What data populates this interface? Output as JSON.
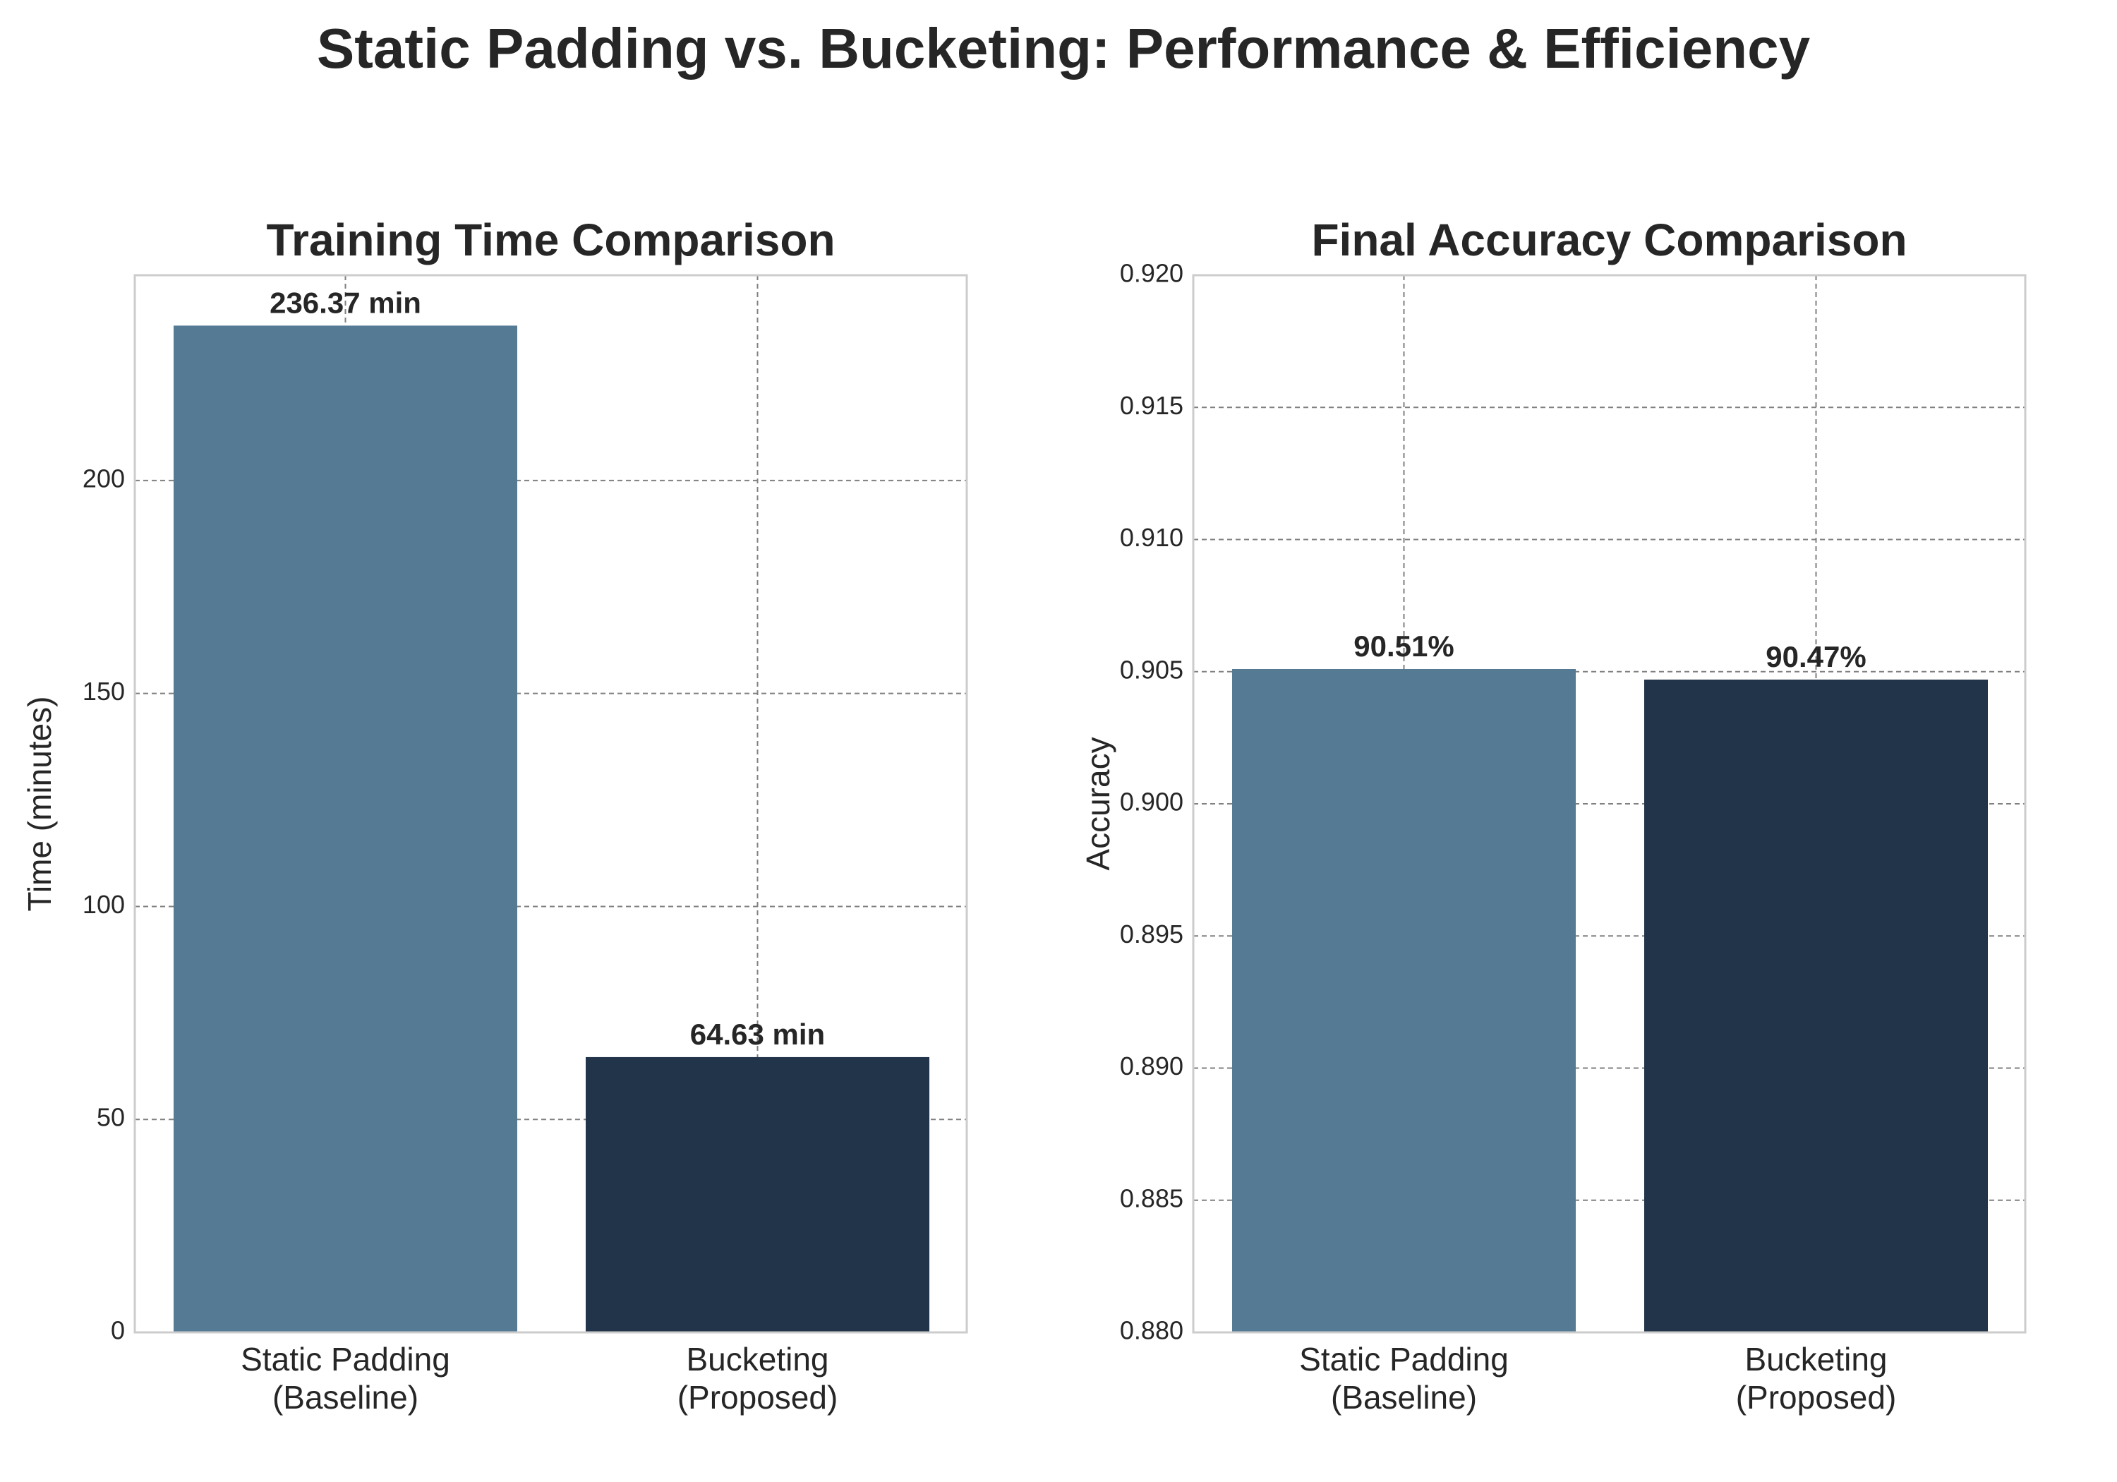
{
  "figure_title": "Static Padding vs. Bucketing: Performance & Efficiency",
  "colors": {
    "series": [
      "#557a94",
      "#22344a"
    ],
    "frame": "#cccccc",
    "grid": "#808080",
    "text": "#262626"
  },
  "chart_data": [
    {
      "type": "bar",
      "title": "Training Time Comparison",
      "xlabel": "",
      "ylabel": "Time (minutes)",
      "categories": [
        [
          "Static Padding",
          "(Baseline)"
        ],
        [
          "Bucketing",
          "(Proposed)"
        ]
      ],
      "values": [
        236.37,
        64.63
      ],
      "data_labels": [
        "236.37 min",
        "64.63 min"
      ],
      "ylim": [
        0,
        248.2
      ],
      "yticks": [
        0,
        50,
        100,
        150,
        200
      ],
      "ytick_labels": [
        "0",
        "50",
        "100",
        "150",
        "200"
      ],
      "grid": true
    },
    {
      "type": "bar",
      "title": "Final Accuracy Comparison",
      "xlabel": "",
      "ylabel": "Accuracy",
      "categories": [
        [
          "Static Padding",
          "(Baseline)"
        ],
        [
          "Bucketing",
          "(Proposed)"
        ]
      ],
      "values": [
        0.9051,
        0.9047
      ],
      "data_labels": [
        "90.51%",
        "90.47%"
      ],
      "ylim": [
        0.88,
        0.92
      ],
      "yticks": [
        0.88,
        0.885,
        0.89,
        0.895,
        0.9,
        0.905,
        0.91,
        0.915,
        0.92
      ],
      "ytick_labels": [
        "0.880",
        "0.885",
        "0.890",
        "0.895",
        "0.900",
        "0.905",
        "0.910",
        "0.915",
        "0.920"
      ],
      "grid": true
    }
  ]
}
